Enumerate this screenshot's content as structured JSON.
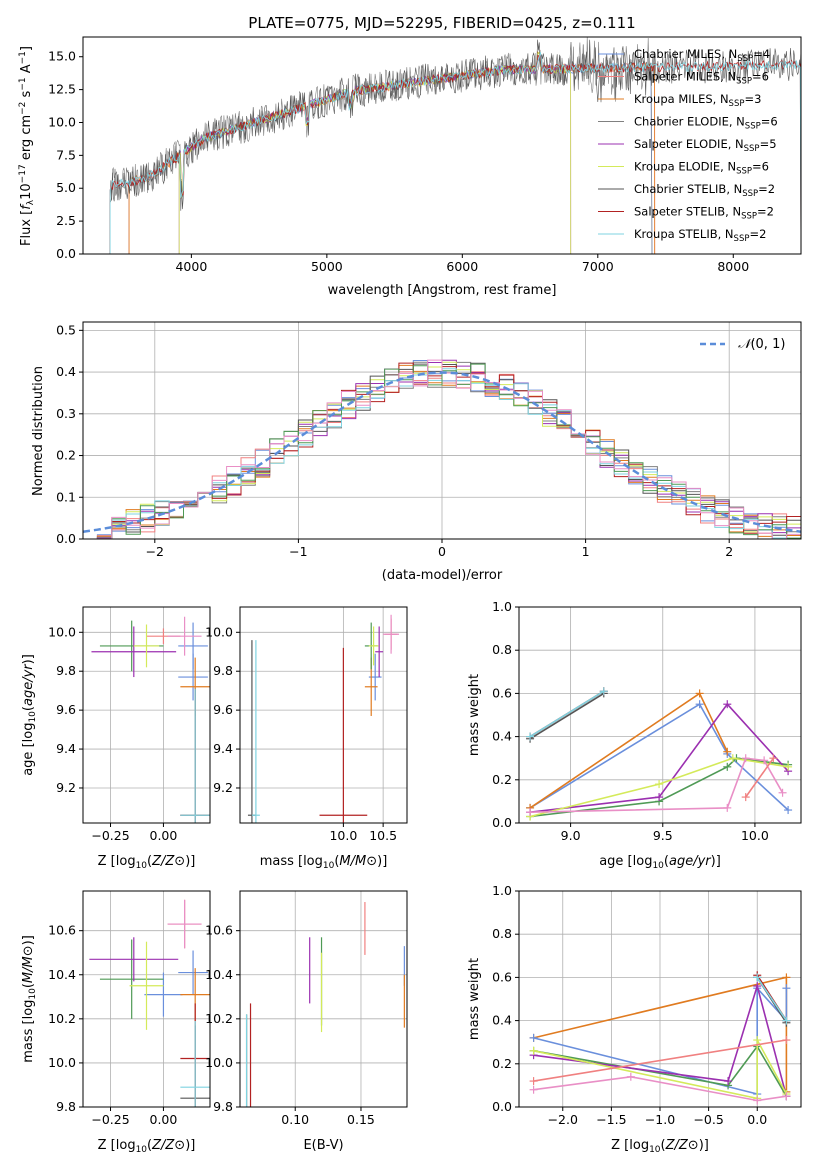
{
  "chart_data": [
    {
      "type": "line",
      "title": "PLATE=0775, MJD=52295, FIBERID=0425, z=0.111",
      "xlabel": "wavelength [Angstrom, rest frame]",
      "ylabel": "Flux [f_λ 10^-17 erg cm^-2 s^-1 A^-1]",
      "xlim": [
        3200,
        8500
      ],
      "ylim": [
        0,
        16.5
      ],
      "xticks": [
        4000,
        5000,
        6000,
        7000,
        8000
      ],
      "yticks": [
        0.0,
        2.5,
        5.0,
        7.5,
        10.0,
        12.5,
        15.0
      ],
      "xtick_labels": [
        "4000",
        "5000",
        "6000",
        "7000",
        "8000"
      ],
      "ytick_labels": [
        "0.0",
        "2.5",
        "5.0",
        "7.5",
        "10.0",
        "12.5",
        "15.0"
      ],
      "legend_position": "top-right",
      "series": [
        {
          "name": "Chabrier MILES, N_SSP=4",
          "color": "#6a8fdc",
          "x_range": [
            3540,
            7400
          ]
        },
        {
          "name": "Salpeter MILES, N_SSP=6",
          "color": "#f08080",
          "x_range": [
            3540,
            7420
          ]
        },
        {
          "name": "Kroupa MILES, N_SSP=3",
          "color": "#e07b20",
          "x_range": [
            3540,
            7420
          ]
        },
        {
          "name": "Chabrier ELODIE, N_SSP=6",
          "color": "#808080",
          "x_range": [
            3400,
            7400
          ]
        },
        {
          "name": "Salpeter ELODIE, N_SSP=5",
          "color": "#9b30b0",
          "x_range": [
            3910,
            6800
          ]
        },
        {
          "name": "Kroupa ELODIE, N_SSP=6",
          "color": "#d4ea5a",
          "x_range": [
            3910,
            6800
          ]
        },
        {
          "name": "Chabrier STELIB, N_SSP=2",
          "color": "#555555",
          "x_range": [
            3400,
            8500
          ]
        },
        {
          "name": "Salpeter STELIB, N_SSP=2",
          "color": "#b22222",
          "x_range": [
            3400,
            8500
          ]
        },
        {
          "name": "Kroupa STELIB, N_SSP=2",
          "color": "#7fd3e0",
          "x_range": [
            3400,
            8500
          ]
        }
      ],
      "legend_labels": [
        {
          "pre": "Chabrier MILES, N",
          "sub": "SSP",
          "post": "=4"
        },
        {
          "pre": "Salpeter MILES, N",
          "sub": "SSP",
          "post": "=6"
        },
        {
          "pre": "Kroupa MILES, N",
          "sub": "SSP",
          "post": "=3"
        },
        {
          "pre": "Chabrier ELODIE, N",
          "sub": "SSP",
          "post": "=6"
        },
        {
          "pre": "Salpeter ELODIE, N",
          "sub": "SSP",
          "post": "=5"
        },
        {
          "pre": "Kroupa ELODIE, N",
          "sub": "SSP",
          "post": "=6"
        },
        {
          "pre": "Chabrier STELIB, N",
          "sub": "SSP",
          "post": "=2"
        },
        {
          "pre": "Salpeter STELIB, N",
          "sub": "SSP",
          "post": "=2"
        },
        {
          "pre": "Kroupa STELIB, N",
          "sub": "SSP",
          "post": "=2"
        }
      ]
    },
    {
      "type": "line",
      "xlabel": "(data-model)/error",
      "ylabel": "Normed distribution",
      "xlim": [
        -2.5,
        2.5
      ],
      "ylim": [
        0,
        0.52
      ],
      "xticks": [
        -2,
        -1,
        0,
        1,
        2
      ],
      "yticks": [
        0.0,
        0.1,
        0.2,
        0.3,
        0.4,
        0.5
      ],
      "xtick_labels": [
        "−2",
        "−1",
        "0",
        "1",
        "2"
      ],
      "ytick_labels": [
        "0.0",
        "0.1",
        "0.2",
        "0.3",
        "0.4",
        "0.5"
      ],
      "legend": [
        {
          "name": "N(0, 1)",
          "color": "#5b8dd9",
          "style": "dashed"
        }
      ],
      "legend_position": "top-right",
      "reference_curve": "normal(0,1)"
    },
    {
      "type": "scatter",
      "xlabel": "Z [log10(Z/Z⊙)]",
      "ylabel": "age [log10(age/yr)]",
      "xlim": [
        -0.38,
        0.22
      ],
      "ylim": [
        9.02,
        10.13
      ],
      "xticks": [
        -0.25,
        0.0
      ],
      "yticks": [
        9.2,
        9.4,
        9.6,
        9.8,
        10.0
      ],
      "xtick_labels": [
        "−0.25",
        "0.00"
      ],
      "ytick_labels": [
        "9.2",
        "9.4",
        "9.6",
        "9.8",
        "10.0"
      ],
      "points": [
        {
          "x": 0.14,
          "xerr": 0.07,
          "y": 9.93,
          "yerr": 0.12,
          "color": "#6a8fdc"
        },
        {
          "x": 0.14,
          "xerr": 0.07,
          "y": 9.77,
          "yerr": 0.12,
          "color": "#6a8fdc"
        },
        {
          "x": 0.0,
          "xerr": 0.08,
          "y": 9.98,
          "yerr": 0.04,
          "color": "#f08080"
        },
        {
          "x": 0.15,
          "xerr": 0.07,
          "y": 9.72,
          "yerr": 0.15,
          "color": "#e07b20"
        },
        {
          "x": -0.15,
          "xerr": 0.15,
          "y": 9.93,
          "yerr": 0.13,
          "color": "#4f9a55"
        },
        {
          "x": -0.14,
          "xerr": 0.2,
          "y": 9.9,
          "yerr": 0.13,
          "color": "#9b30b0"
        },
        {
          "x": -0.08,
          "xerr": 0.06,
          "y": 9.93,
          "yerr": 0.11,
          "color": "#d4ea5a"
        },
        {
          "x": 0.1,
          "xerr": 0.08,
          "y": 9.98,
          "yerr": 0.1,
          "color": "#e98fc6"
        },
        {
          "x": 0.15,
          "xerr": 0.07,
          "y": 9.06,
          "yerr": 0.65,
          "color": "#555555"
        },
        {
          "x": 0.15,
          "xerr": 0.07,
          "y": 9.06,
          "yerr": 0.65,
          "color": "#b22222"
        },
        {
          "x": 0.15,
          "xerr": 0.07,
          "y": 9.06,
          "yerr": 0.65,
          "color": "#7fd3e0"
        }
      ]
    },
    {
      "type": "scatter",
      "xlabel": "mass [log10(M/M⊙)]",
      "xlim": [
        8.7,
        10.8
      ],
      "ylim": [
        9.02,
        10.13
      ],
      "xticks": [
        10.0,
        10.5
      ],
      "yticks": [
        9.2,
        9.4,
        9.6,
        9.8,
        10.0
      ],
      "xtick_labels": [
        "10.0",
        "10.5"
      ],
      "ytick_labels": [
        "9.2",
        "9.4",
        "9.6",
        "9.8",
        "10.0"
      ],
      "points": [
        {
          "x": 10.4,
          "xerr": 0.08,
          "y": 9.77,
          "yerr": 0.12,
          "color": "#6a8fdc"
        },
        {
          "x": 10.6,
          "xerr": 0.08,
          "y": 9.99,
          "yerr": 0.08,
          "color": "#f08080"
        },
        {
          "x": 10.35,
          "xerr": 0.08,
          "y": 9.72,
          "yerr": 0.15,
          "color": "#e07b20"
        },
        {
          "x": 10.35,
          "xerr": 0.08,
          "y": 9.93,
          "yerr": 0.12,
          "color": "#4f9a55"
        },
        {
          "x": 10.45,
          "xerr": 0.05,
          "y": 9.9,
          "yerr": 0.13,
          "color": "#9b30b0"
        },
        {
          "x": 10.38,
          "xerr": 0.06,
          "y": 9.93,
          "yerr": 0.1,
          "color": "#d4ea5a"
        },
        {
          "x": 10.6,
          "xerr": 0.1,
          "y": 9.99,
          "yerr": 0.1,
          "color": "#e98fc6"
        },
        {
          "x": 8.85,
          "xerr": 0.05,
          "y": 9.06,
          "yerr": 0.9,
          "color": "#555555"
        },
        {
          "x": 10.0,
          "xerr": 0.3,
          "y": 9.06,
          "yerr": 0.86,
          "color": "#b22222"
        },
        {
          "x": 8.9,
          "xerr": 0.05,
          "y": 9.06,
          "yerr": 0.9,
          "color": "#7fd3e0"
        }
      ]
    },
    {
      "type": "line",
      "xlabel": "age [log10(age/yr)]",
      "ylabel": "mass weight",
      "xlim": [
        8.72,
        10.25
      ],
      "ylim": [
        0.0,
        1.0
      ],
      "xticks": [
        9.0,
        9.5,
        10.0
      ],
      "yticks": [
        0.0,
        0.2,
        0.4,
        0.6,
        0.8,
        1.0
      ],
      "xtick_labels": [
        "9.0",
        "9.5",
        "10.0"
      ],
      "ytick_labels": [
        "0.0",
        "0.2",
        "0.4",
        "0.6",
        "0.8",
        "1.0"
      ],
      "series": [
        {
          "color": "#6a8fdc",
          "x": [
            8.78,
            9.7,
            9.85,
            10.18
          ],
          "y": [
            0.07,
            0.55,
            0.32,
            0.06
          ]
        },
        {
          "color": "#e07b20",
          "x": [
            8.78,
            9.7,
            9.85
          ],
          "y": [
            0.07,
            0.6,
            0.33
          ]
        },
        {
          "color": "#4f9a55",
          "x": [
            8.78,
            9.48,
            9.85,
            9.9,
            10.18
          ],
          "y": [
            0.03,
            0.1,
            0.26,
            0.3,
            0.27
          ]
        },
        {
          "color": "#9b30b0",
          "x": [
            8.78,
            9.48,
            9.85,
            10.18
          ],
          "y": [
            0.05,
            0.12,
            0.55,
            0.24
          ]
        },
        {
          "color": "#d4ea5a",
          "x": [
            8.78,
            9.48,
            9.88,
            10.18
          ],
          "y": [
            0.03,
            0.18,
            0.3,
            0.26
          ]
        },
        {
          "color": "#e98fc6",
          "x": [
            8.78,
            9.85,
            9.95,
            10.05,
            10.15
          ],
          "y": [
            0.05,
            0.07,
            0.3,
            0.29,
            0.14
          ]
        },
        {
          "color": "#f08080",
          "x": [
            9.95,
            10.1
          ],
          "y": [
            0.12,
            0.3
          ]
        },
        {
          "color": "#555555",
          "x": [
            8.78,
            9.18
          ],
          "y": [
            0.39,
            0.6
          ]
        },
        {
          "color": "#b22222",
          "x": [
            8.78,
            9.18
          ],
          "y": [
            0.4,
            0.61
          ]
        },
        {
          "color": "#7fd3e0",
          "x": [
            8.78,
            9.18
          ],
          "y": [
            0.4,
            0.61
          ]
        }
      ]
    },
    {
      "type": "scatter",
      "xlabel": "Z [log10(Z/Z⊙)]",
      "ylabel": "mass [log10(M/M⊙)]",
      "xlim": [
        -0.38,
        0.22
      ],
      "ylim": [
        9.8,
        10.78
      ],
      "xticks": [
        -0.25,
        0.0
      ],
      "yticks": [
        9.8,
        10.0,
        10.2,
        10.4,
        10.6
      ],
      "xtick_labels": [
        "−0.25",
        "0.00"
      ],
      "ytick_labels": [
        "9.8",
        "10.0",
        "10.2",
        "10.4",
        "10.6"
      ],
      "points": [
        {
          "x": 0.14,
          "xerr": 0.07,
          "y": 10.41,
          "yerr": 0.1,
          "color": "#6a8fdc"
        },
        {
          "x": 0.0,
          "xerr": 0.09,
          "y": 10.31,
          "yerr": 0.1,
          "color": "#6a8fdc"
        },
        {
          "x": 0.1,
          "xerr": 0.08,
          "y": 10.63,
          "yerr": 0.11,
          "color": "#f08080"
        },
        {
          "x": 0.15,
          "xerr": 0.07,
          "y": 10.31,
          "yerr": 0.12,
          "color": "#e07b20"
        },
        {
          "x": -0.15,
          "xerr": 0.15,
          "y": 10.38,
          "yerr": 0.18,
          "color": "#4f9a55"
        },
        {
          "x": -0.14,
          "xerr": 0.21,
          "y": 10.47,
          "yerr": 0.1,
          "color": "#9b30b0"
        },
        {
          "x": -0.08,
          "xerr": 0.08,
          "y": 10.35,
          "yerr": 0.2,
          "color": "#d4ea5a"
        },
        {
          "x": 0.1,
          "xerr": 0.08,
          "y": 10.63,
          "yerr": 0.11,
          "color": "#e98fc6"
        },
        {
          "x": 0.15,
          "xerr": 0.07,
          "y": 9.84,
          "yerr": 0.33,
          "color": "#555555"
        },
        {
          "x": 0.15,
          "xerr": 0.07,
          "y": 10.02,
          "yerr": 0.25,
          "color": "#b22222"
        },
        {
          "x": 0.15,
          "xerr": 0.07,
          "y": 9.89,
          "yerr": 0.3,
          "color": "#7fd3e0"
        }
      ]
    },
    {
      "type": "scatter",
      "xlabel": "E(B-V)",
      "xlim": [
        0.058,
        0.185
      ],
      "ylim": [
        9.8,
        10.78
      ],
      "xticks": [
        0.1,
        0.15
      ],
      "yticks": [
        9.8,
        10.0,
        10.2,
        10.4,
        10.6
      ],
      "xtick_labels": [
        "0.10",
        "0.15"
      ],
      "ytick_labels": [
        "9.8",
        "10.0",
        "10.2",
        "10.4",
        "10.6"
      ],
      "points": [
        {
          "x": 0.183,
          "yerr": 0.09,
          "y": 10.44,
          "color": "#6a8fdc"
        },
        {
          "x": 0.153,
          "yerr": 0.12,
          "y": 10.61,
          "color": "#f08080"
        },
        {
          "x": 0.183,
          "yerr": 0.12,
          "y": 10.28,
          "color": "#e07b20"
        },
        {
          "x": 0.12,
          "yerr": 0.2,
          "y": 10.37,
          "color": "#4f9a55"
        },
        {
          "x": 0.111,
          "yerr": 0.15,
          "y": 10.42,
          "color": "#9b30b0"
        },
        {
          "x": 0.12,
          "yerr": 0.18,
          "y": 10.32,
          "color": "#d4ea5a"
        },
        {
          "x": 0.063,
          "yerr": 0.3,
          "y": 9.92,
          "color": "#555555"
        },
        {
          "x": 0.066,
          "yerr": 0.25,
          "y": 10.02,
          "color": "#b22222"
        },
        {
          "x": 0.063,
          "yerr": 0.3,
          "y": 9.92,
          "color": "#7fd3e0"
        }
      ]
    },
    {
      "type": "line",
      "xlabel": "Z [log10(Z/Z⊙)]",
      "ylabel": "mass weight",
      "xlim": [
        -2.45,
        0.45
      ],
      "ylim": [
        0.0,
        1.0
      ],
      "xticks": [
        -2.0,
        -1.5,
        -1.0,
        -0.5,
        0.0
      ],
      "yticks": [
        0.0,
        0.2,
        0.4,
        0.6,
        0.8,
        1.0
      ],
      "xtick_labels": [
        "−2.0",
        "−1.5",
        "−1.0",
        "−0.5",
        "0.0"
      ],
      "ytick_labels": [
        "0.0",
        "0.2",
        "0.4",
        "0.6",
        "0.8",
        "1.0"
      ],
      "series": [
        {
          "color": "#e07b20",
          "x": [
            -2.3,
            0.3,
            0.3
          ],
          "y": [
            0.32,
            0.6,
            0.07
          ]
        },
        {
          "color": "#6a8fdc",
          "x": [
            -2.3,
            0.0,
            0.0,
            0.3,
            0.3
          ],
          "y": [
            0.32,
            0.06,
            0.55,
            0.4,
            0.55
          ]
        },
        {
          "color": "#4f9a55",
          "x": [
            -2.3,
            -0.3,
            0.0,
            0.3
          ],
          "y": [
            0.26,
            0.1,
            0.28,
            0.05
          ]
        },
        {
          "color": "#9b30b0",
          "x": [
            -2.3,
            -0.3,
            0.0,
            0.3
          ],
          "y": [
            0.24,
            0.12,
            0.56,
            0.05
          ]
        },
        {
          "color": "#d4ea5a",
          "x": [
            -2.3,
            0.0,
            0.0,
            0.3
          ],
          "y": [
            0.26,
            0.04,
            0.31,
            0.06
          ]
        },
        {
          "color": "#e98fc6",
          "x": [
            -2.3,
            -1.3,
            0.0,
            0.3
          ],
          "y": [
            0.08,
            0.14,
            0.03,
            0.05
          ]
        },
        {
          "color": "#f08080",
          "x": [
            -2.3,
            0.3
          ],
          "y": [
            0.12,
            0.31
          ]
        },
        {
          "color": "#555555",
          "x": [
            0.0,
            0.3
          ],
          "y": [
            0.6,
            0.39
          ]
        },
        {
          "color": "#b22222",
          "x": [
            0.0,
            0.3
          ],
          "y": [
            0.61,
            0.4
          ]
        },
        {
          "color": "#7fd3e0",
          "x": [
            0.0,
            0.3
          ],
          "y": [
            0.6,
            0.4
          ]
        }
      ]
    }
  ]
}
